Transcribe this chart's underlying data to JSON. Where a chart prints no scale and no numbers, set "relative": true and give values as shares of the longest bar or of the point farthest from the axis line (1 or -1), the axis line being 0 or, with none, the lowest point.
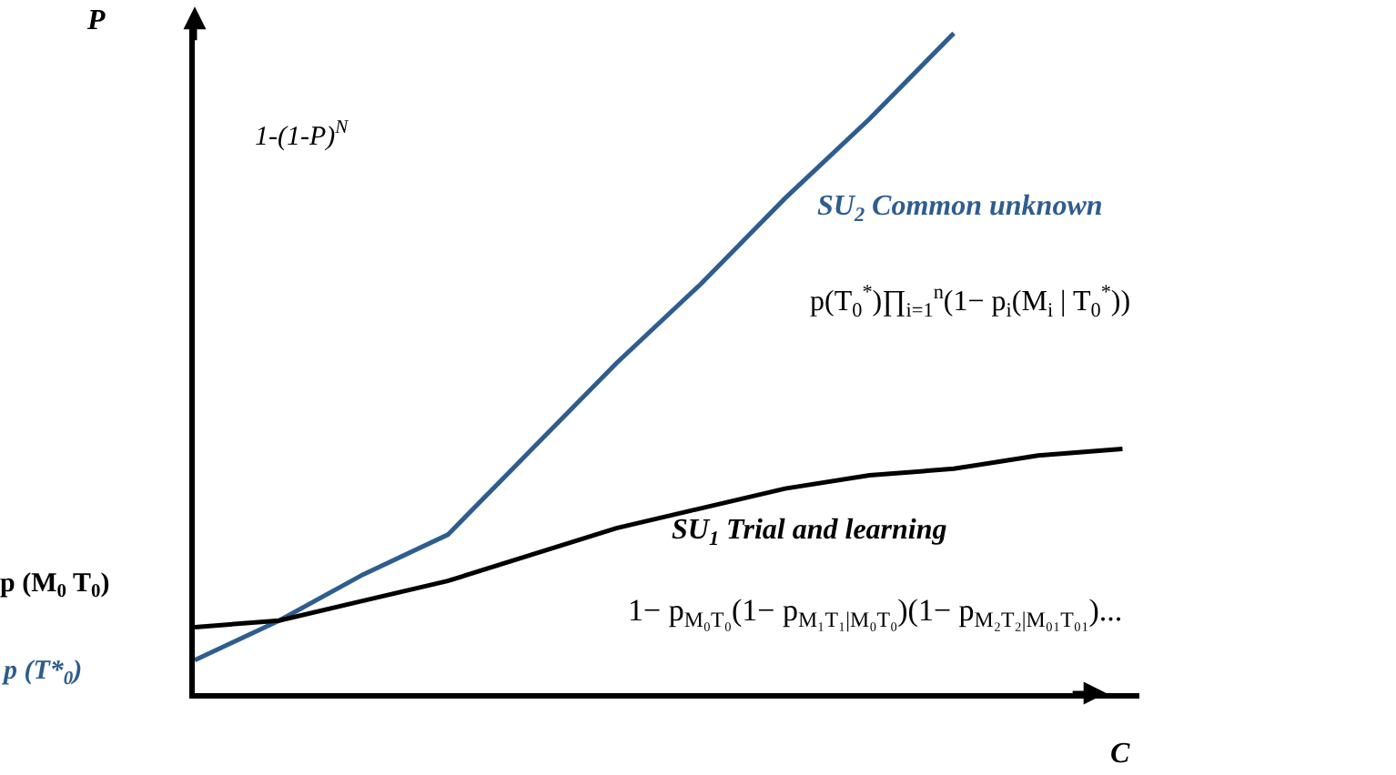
{
  "chart_data": {
    "type": "line",
    "relative": true,
    "ylabel": "P",
    "xlabel": "C",
    "categories": [
      null,
      null,
      null,
      null,
      null,
      null,
      null,
      null,
      null,
      null,
      null,
      null
    ],
    "series": [
      {
        "color": "#2e5d8e",
        "values": [
          0.05,
          0.11,
          0.18,
          0.24,
          0.37,
          0.5,
          0.62,
          0.75,
          0.87,
          1,
          null,
          null
        ]
      },
      {
        "color": "#000000",
        "values": [
          0.1,
          0.11,
          0.14,
          0.17,
          0.21,
          0.25,
          0.28,
          0.31,
          0.33,
          0.34,
          0.36,
          0.37
        ]
      }
    ],
    "annotations": [
      "1-(1-P)$^{N}$",
      "SU$_{2}$ Common unknown",
      "p(T$_{0}$$^{*}$)∏$_{i=1}$$^{n}$(1− p$_{i}$(M$_{i}$ | T$_{0}$$^{*}$))",
      "SU$_{1}$ Trial and learning",
      "1− p$_{M₀T₀}$(1− p$_{M₁T₁|M₀T₀}$)(1− p$_{M₂T₂|M₀₁T₀₁}$)...",
      "p (M$_{0}$ T$_{0}$)",
      "p (T*$_{0}$)"
    ],
    "legend": false,
    "marker": "none",
    "line_style": "solid"
  }
}
